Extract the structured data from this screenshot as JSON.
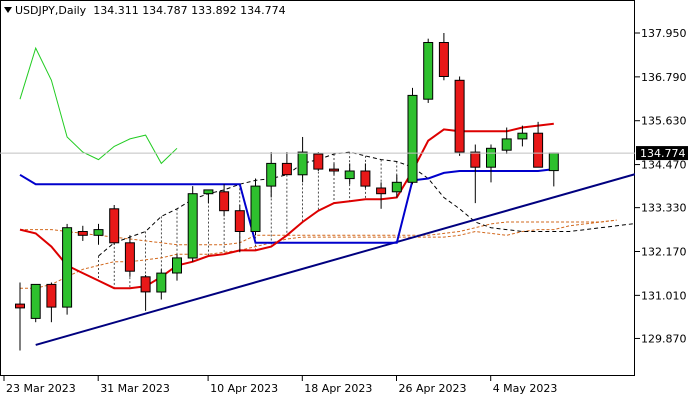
{
  "header": {
    "symbol": "USDJPY,Daily",
    "ohlc": "134.311 134.787 133.892 134.774"
  },
  "chart_data": {
    "type": "candlestick",
    "symbol": "USDJPY",
    "timeframe": "Daily",
    "ylim": [
      129.3,
      138.4
    ],
    "y_ticks": [
      "137.950",
      "136.790",
      "135.630",
      "134.470",
      "133.330",
      "132.170",
      "131.010",
      "129.870"
    ],
    "x_ticks": [
      "23 Mar 2023",
      "31 Mar 2023",
      "10 Apr 2023",
      "18 Apr 2023",
      "26 Apr 2023",
      "4 May 2023"
    ],
    "current_price": "134.774",
    "candles": [
      {
        "o": 130.78,
        "h": 131.35,
        "l": 129.55,
        "c": 130.68
      },
      {
        "o": 130.4,
        "h": 131.3,
        "l": 130.3,
        "c": 131.3
      },
      {
        "o": 131.3,
        "h": 131.35,
        "l": 130.3,
        "c": 130.7
      },
      {
        "o": 130.7,
        "h": 132.9,
        "l": 130.5,
        "c": 132.8
      },
      {
        "o": 132.7,
        "h": 132.85,
        "l": 132.45,
        "c": 132.6
      },
      {
        "o": 132.6,
        "h": 132.9,
        "l": 132.35,
        "c": 132.75
      },
      {
        "o": 133.3,
        "h": 133.4,
        "l": 132.35,
        "c": 132.4
      },
      {
        "o": 132.4,
        "h": 132.6,
        "l": 131.5,
        "c": 131.65
      },
      {
        "o": 131.5,
        "h": 131.55,
        "l": 130.6,
        "c": 131.1
      },
      {
        "o": 131.1,
        "h": 131.7,
        "l": 130.9,
        "c": 131.6
      },
      {
        "o": 131.6,
        "h": 132.1,
        "l": 131.4,
        "c": 132.0
      },
      {
        "o": 132.0,
        "h": 133.9,
        "l": 131.9,
        "c": 133.7
      },
      {
        "o": 133.7,
        "h": 133.8,
        "l": 133.45,
        "c": 133.8
      },
      {
        "o": 133.75,
        "h": 133.95,
        "l": 133.1,
        "c": 133.25
      },
      {
        "o": 133.25,
        "h": 133.4,
        "l": 132.15,
        "c": 132.7
      },
      {
        "o": 132.7,
        "h": 134.1,
        "l": 132.6,
        "c": 133.9
      },
      {
        "o": 133.9,
        "h": 134.8,
        "l": 133.6,
        "c": 134.5
      },
      {
        "o": 134.5,
        "h": 134.8,
        "l": 134.2,
        "c": 134.2
      },
      {
        "o": 134.2,
        "h": 135.2,
        "l": 134.0,
        "c": 134.8
      },
      {
        "o": 134.75,
        "h": 134.8,
        "l": 134.3,
        "c": 134.35
      },
      {
        "o": 134.35,
        "h": 134.5,
        "l": 134.2,
        "c": 134.3
      },
      {
        "o": 134.1,
        "h": 134.5,
        "l": 133.95,
        "c": 134.3
      },
      {
        "o": 134.3,
        "h": 134.5,
        "l": 133.85,
        "c": 133.9
      },
      {
        "o": 133.85,
        "h": 134.0,
        "l": 133.3,
        "c": 133.7
      },
      {
        "o": 133.75,
        "h": 134.2,
        "l": 133.6,
        "c": 134.0
      },
      {
        "o": 134.0,
        "h": 136.5,
        "l": 133.95,
        "c": 136.3
      },
      {
        "o": 136.2,
        "h": 137.8,
        "l": 136.1,
        "c": 137.7
      },
      {
        "o": 137.7,
        "h": 137.95,
        "l": 136.7,
        "c": 136.8
      },
      {
        "o": 136.7,
        "h": 136.8,
        "l": 134.7,
        "c": 134.8
      },
      {
        "o": 134.8,
        "h": 135.0,
        "l": 133.45,
        "c": 134.4
      },
      {
        "o": 134.4,
        "h": 135.0,
        "l": 134.0,
        "c": 134.9
      },
      {
        "o": 134.85,
        "h": 135.45,
        "l": 134.75,
        "c": 135.15
      },
      {
        "o": 135.15,
        "h": 135.5,
        "l": 134.95,
        "c": 135.3
      },
      {
        "o": 135.3,
        "h": 135.6,
        "l": 134.4,
        "c": 134.4
      },
      {
        "o": 134.31,
        "h": 134.787,
        "l": 133.892,
        "c": 134.774
      }
    ],
    "lines": {
      "green_lagging": [
        [
          0,
          136.2
        ],
        [
          1,
          137.55
        ],
        [
          2,
          136.7
        ],
        [
          3,
          135.2
        ],
        [
          4,
          134.8
        ],
        [
          5,
          134.6
        ],
        [
          6,
          134.95
        ],
        [
          7,
          135.15
        ],
        [
          8,
          135.25
        ],
        [
          9,
          134.5
        ],
        [
          10,
          134.9
        ]
      ],
      "red_line": [
        [
          0,
          132.75
        ],
        [
          1,
          132.65
        ],
        [
          2,
          132.3
        ],
        [
          3,
          131.8
        ],
        [
          4,
          131.6
        ],
        [
          5,
          131.4
        ],
        [
          6,
          131.2
        ],
        [
          7,
          131.2
        ],
        [
          8,
          131.25
        ],
        [
          9,
          131.5
        ],
        [
          10,
          131.8
        ],
        [
          11,
          131.9
        ],
        [
          12,
          132.05
        ],
        [
          13,
          132.1
        ],
        [
          14,
          132.2
        ],
        [
          15,
          132.2
        ],
        [
          16,
          132.3
        ],
        [
          17,
          132.6
        ],
        [
          18,
          132.95
        ],
        [
          19,
          133.25
        ],
        [
          20,
          133.45
        ],
        [
          21,
          133.5
        ],
        [
          22,
          133.55
        ],
        [
          23,
          133.55
        ],
        [
          24,
          133.6
        ],
        [
          25,
          134.3
        ],
        [
          26,
          135.1
        ],
        [
          27,
          135.4
        ],
        [
          28,
          135.35
        ],
        [
          29,
          135.35
        ],
        [
          30,
          135.35
        ],
        [
          31,
          135.35
        ],
        [
          32,
          135.45
        ],
        [
          33,
          135.5
        ],
        [
          34,
          135.55
        ]
      ],
      "blue_line": [
        [
          0,
          134.2
        ],
        [
          1,
          133.95
        ],
        [
          2,
          133.95
        ],
        [
          3,
          133.95
        ],
        [
          4,
          133.95
        ],
        [
          5,
          133.95
        ],
        [
          6,
          133.95
        ],
        [
          7,
          133.95
        ],
        [
          8,
          133.95
        ],
        [
          9,
          133.95
        ],
        [
          10,
          133.95
        ],
        [
          11,
          133.95
        ],
        [
          12,
          133.95
        ],
        [
          13,
          133.95
        ],
        [
          14,
          133.95
        ],
        [
          15,
          132.4
        ],
        [
          16,
          132.4
        ],
        [
          17,
          132.4
        ],
        [
          18,
          132.4
        ],
        [
          19,
          132.4
        ],
        [
          20,
          132.4
        ],
        [
          21,
          132.4
        ],
        [
          22,
          132.4
        ],
        [
          23,
          132.4
        ],
        [
          24,
          132.4
        ],
        [
          25,
          134.05
        ],
        [
          26,
          134.1
        ],
        [
          27,
          134.25
        ],
        [
          28,
          134.3
        ],
        [
          29,
          134.3
        ],
        [
          30,
          134.3
        ],
        [
          31,
          134.3
        ],
        [
          32,
          134.3
        ],
        [
          33,
          134.3
        ],
        [
          34,
          134.35
        ]
      ],
      "orange_upper": [
        [
          0,
          132.75
        ],
        [
          1,
          132.75
        ],
        [
          2,
          132.75
        ],
        [
          3,
          132.7
        ],
        [
          4,
          132.65
        ],
        [
          5,
          132.6
        ],
        [
          6,
          132.55
        ],
        [
          7,
          132.5
        ],
        [
          8,
          132.45
        ],
        [
          9,
          132.4
        ],
        [
          10,
          132.35
        ],
        [
          11,
          132.35
        ],
        [
          12,
          132.35
        ],
        [
          13,
          132.35
        ],
        [
          14,
          132.4
        ],
        [
          15,
          132.6
        ],
        [
          16,
          132.6
        ],
        [
          17,
          132.6
        ],
        [
          18,
          132.6
        ],
        [
          19,
          132.6
        ],
        [
          20,
          132.6
        ],
        [
          21,
          132.6
        ],
        [
          22,
          132.6
        ],
        [
          23,
          132.6
        ],
        [
          24,
          132.6
        ],
        [
          25,
          132.6
        ],
        [
          26,
          132.6
        ],
        [
          27,
          132.65
        ],
        [
          28,
          132.7
        ],
        [
          29,
          132.8
        ],
        [
          30,
          132.9
        ],
        [
          31,
          132.95
        ],
        [
          32,
          132.95
        ],
        [
          33,
          132.95
        ],
        [
          34,
          132.95
        ],
        [
          35,
          132.95
        ],
        [
          36,
          132.95
        ],
        [
          37,
          132.95
        ],
        [
          38,
          133.0
        ]
      ],
      "orange_lower": [
        [
          0,
          131.2
        ],
        [
          1,
          131.2
        ],
        [
          2,
          131.3
        ],
        [
          3,
          131.5
        ],
        [
          4,
          131.7
        ],
        [
          5,
          131.8
        ],
        [
          6,
          131.9
        ],
        [
          7,
          131.9
        ],
        [
          8,
          131.95
        ],
        [
          9,
          132.0
        ],
        [
          10,
          132.1
        ],
        [
          11,
          132.1
        ],
        [
          12,
          132.1
        ],
        [
          13,
          132.15
        ],
        [
          14,
          132.2
        ],
        [
          15,
          132.3
        ],
        [
          16,
          132.4
        ],
        [
          17,
          132.5
        ],
        [
          18,
          132.55
        ],
        [
          19,
          132.55
        ],
        [
          20,
          132.55
        ],
        [
          21,
          132.55
        ],
        [
          22,
          132.55
        ],
        [
          23,
          132.55
        ],
        [
          24,
          132.55
        ],
        [
          25,
          132.55
        ],
        [
          26,
          132.55
        ],
        [
          27,
          132.55
        ],
        [
          28,
          132.6
        ],
        [
          29,
          132.7
        ],
        [
          30,
          132.65
        ],
        [
          31,
          132.6
        ],
        [
          32,
          132.7
        ],
        [
          33,
          132.75
        ],
        [
          34,
          132.75
        ],
        [
          35,
          132.85
        ],
        [
          36,
          132.9
        ],
        [
          37,
          132.95
        ],
        [
          38,
          133.0
        ]
      ],
      "black_dashed": [
        [
          5,
          132.05
        ],
        [
          6,
          132.4
        ],
        [
          7,
          132.55
        ],
        [
          8,
          132.7
        ],
        [
          9,
          133.1
        ],
        [
          10,
          133.3
        ],
        [
          11,
          133.55
        ],
        [
          12,
          133.7
        ],
        [
          13,
          133.8
        ],
        [
          14,
          133.95
        ],
        [
          15,
          134.05
        ],
        [
          16,
          134.1
        ],
        [
          17,
          134.2
        ],
        [
          18,
          134.5
        ],
        [
          19,
          134.6
        ],
        [
          20,
          134.75
        ],
        [
          21,
          134.8
        ],
        [
          22,
          134.7
        ],
        [
          23,
          134.6
        ],
        [
          24,
          134.55
        ],
        [
          25,
          134.4
        ],
        [
          26,
          134.1
        ],
        [
          27,
          133.6
        ],
        [
          28,
          133.3
        ],
        [
          29,
          132.95
        ],
        [
          30,
          132.8
        ],
        [
          31,
          132.75
        ],
        [
          32,
          132.7
        ],
        [
          33,
          132.7
        ],
        [
          34,
          132.7
        ],
        [
          35,
          132.7
        ],
        [
          36,
          132.75
        ],
        [
          37,
          132.8
        ],
        [
          38,
          132.85
        ],
        [
          39,
          132.9
        ],
        [
          40,
          132.95
        ]
      ],
      "trendline": [
        [
          1,
          129.7
        ],
        [
          42,
          134.55
        ]
      ]
    }
  }
}
